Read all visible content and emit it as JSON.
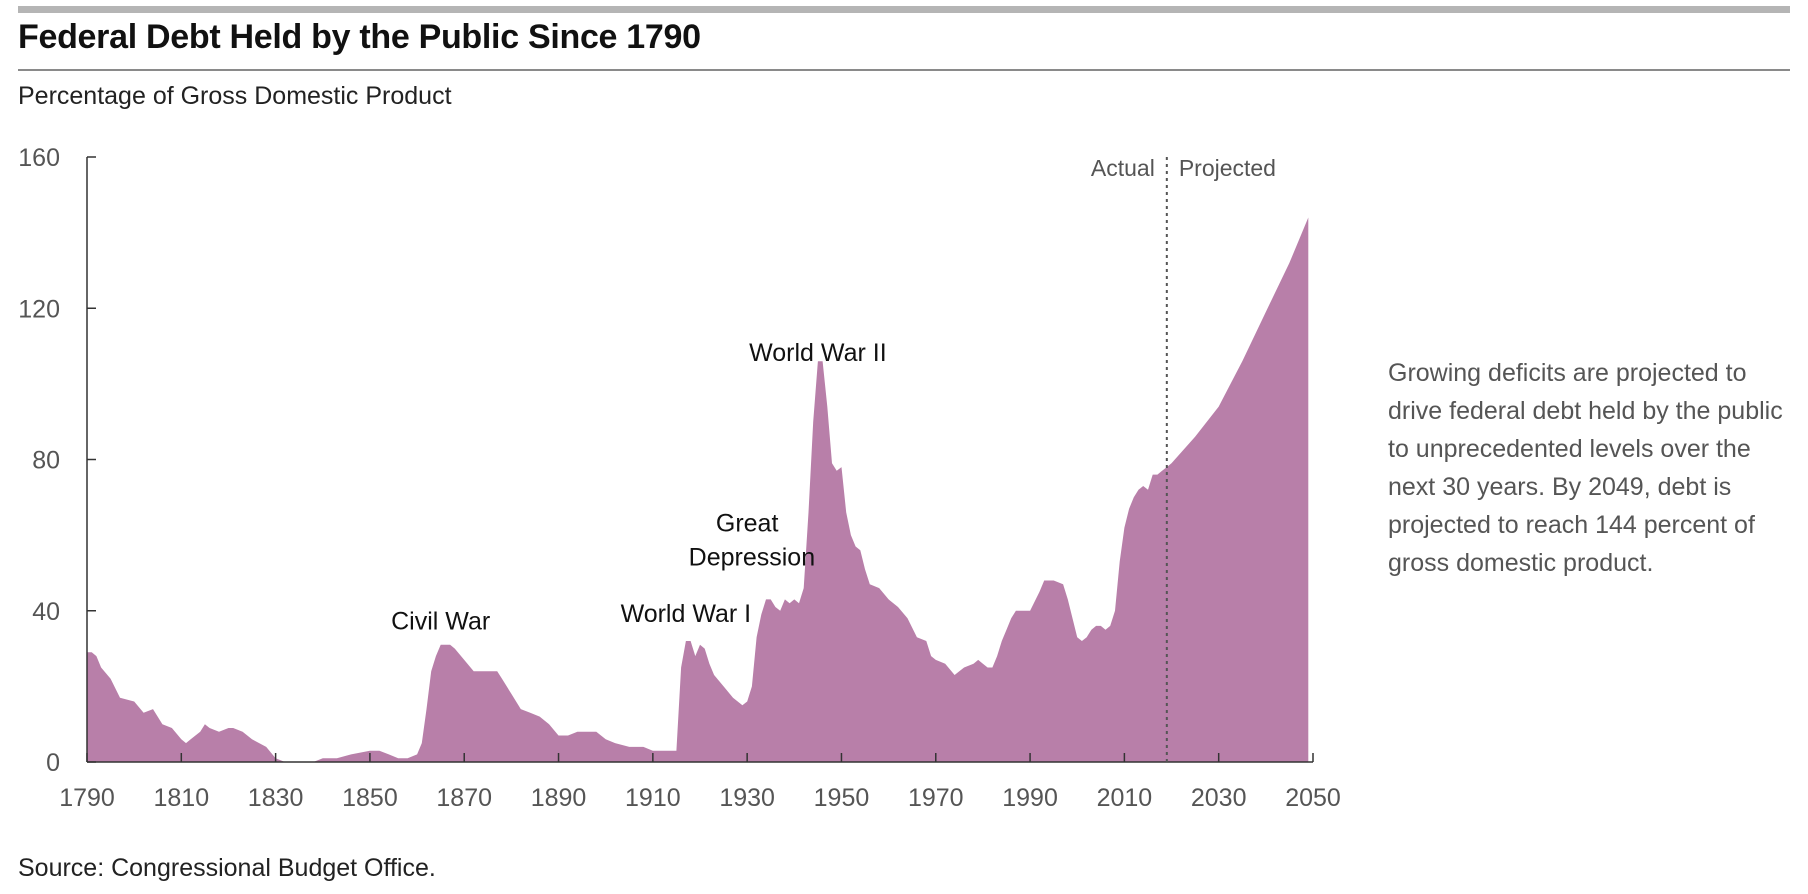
{
  "title": "Federal Debt Held by the Public Since 1790",
  "subtitle": "Percentage of Gross Domestic Product",
  "note": "Growing deficits are projected to drive federal debt held by the public to unprecedented levels over the next 30 years. By 2049, debt is projected to reach 144 percent of gross domestic product.",
  "source": "Source: Congressional Budget Office.",
  "colors": {
    "fill": "#b87fa9",
    "axis": "#333333",
    "divider": "#555555"
  },
  "chart_data": {
    "type": "area",
    "title": "Federal Debt Held by the Public Since 1790",
    "ylabel": "Percentage of Gross Domestic Product",
    "xlabel": "",
    "xlim": [
      1790,
      2050
    ],
    "ylim": [
      0,
      160
    ],
    "xticks": [
      1790,
      1810,
      1830,
      1850,
      1870,
      1890,
      1910,
      1930,
      1950,
      1970,
      1990,
      2010,
      2030,
      2050
    ],
    "yticks": [
      0,
      40,
      80,
      120,
      160
    ],
    "divider": {
      "year": 2019,
      "left_label": "Actual",
      "right_label": "Projected"
    },
    "annotations": [
      {
        "text": "Civil War",
        "x": 1865,
        "y": 35
      },
      {
        "text": "World War I",
        "x": 1917,
        "y": 37
      },
      {
        "text": "Great",
        "x": 1930,
        "y": 61
      },
      {
        "text": "Depression",
        "x": 1931,
        "y": 52
      },
      {
        "text": "World War II",
        "x": 1945,
        "y": 106
      }
    ],
    "series": [
      {
        "name": "Federal debt held by the public",
        "x": [
          1790,
          1791,
          1792,
          1793,
          1795,
          1797,
          1800,
          1802,
          1804,
          1806,
          1808,
          1810,
          1811,
          1812,
          1814,
          1815,
          1816,
          1818,
          1820,
          1821,
          1823,
          1825,
          1828,
          1830,
          1832,
          1833,
          1835,
          1838,
          1840,
          1843,
          1846,
          1850,
          1852,
          1854,
          1856,
          1858,
          1860,
          1861,
          1862,
          1863,
          1864,
          1865,
          1866,
          1867,
          1868,
          1870,
          1872,
          1873,
          1875,
          1877,
          1878,
          1880,
          1882,
          1884,
          1886,
          1888,
          1890,
          1892,
          1894,
          1896,
          1898,
          1900,
          1902,
          1905,
          1908,
          1910,
          1912,
          1914,
          1915,
          1916,
          1917,
          1918,
          1919,
          1920,
          1921,
          1922,
          1923,
          1925,
          1927,
          1929,
          1930,
          1931,
          1932,
          1933,
          1934,
          1935,
          1936,
          1937,
          1938,
          1939,
          1940,
          1941,
          1942,
          1943,
          1944,
          1945,
          1946,
          1947,
          1948,
          1949,
          1950,
          1951,
          1952,
          1953,
          1954,
          1955,
          1956,
          1958,
          1960,
          1962,
          1964,
          1966,
          1968,
          1969,
          1970,
          1972,
          1974,
          1975,
          1976,
          1978,
          1979,
          1980,
          1981,
          1982,
          1983,
          1984,
          1985,
          1986,
          1987,
          1988,
          1990,
          1992,
          1993,
          1995,
          1997,
          1998,
          1999,
          2000,
          2001,
          2002,
          2003,
          2004,
          2005,
          2006,
          2007,
          2008,
          2009,
          2010,
          2011,
          2012,
          2013,
          2014,
          2015,
          2016,
          2017,
          2018,
          2019,
          2020,
          2025,
          2030,
          2035,
          2040,
          2045,
          2049
        ],
        "values": [
          29,
          29,
          28,
          25,
          22,
          17,
          16,
          13,
          14,
          10,
          9,
          6,
          5,
          6,
          8,
          10,
          9,
          8,
          9,
          9,
          8,
          6,
          4,
          1,
          0,
          0,
          0,
          0,
          1,
          1,
          2,
          3,
          3,
          2,
          1,
          1,
          2,
          5,
          14,
          24,
          28,
          31,
          31,
          31,
          30,
          27,
          24,
          24,
          24,
          24,
          22,
          18,
          14,
          13,
          12,
          10,
          7,
          7,
          8,
          8,
          8,
          6,
          5,
          4,
          4,
          3,
          3,
          3,
          3,
          25,
          32,
          32,
          28,
          31,
          30,
          26,
          23,
          20,
          17,
          15,
          16,
          20,
          33,
          39,
          43,
          43,
          41,
          40,
          43,
          42,
          43,
          42,
          46,
          66,
          90,
          106,
          106,
          94,
          79,
          77,
          78,
          66,
          60,
          57,
          56,
          51,
          47,
          46,
          43,
          41,
          38,
          33,
          32,
          28,
          27,
          26,
          23,
          24,
          25,
          26,
          27,
          26,
          25,
          25,
          28,
          32,
          35,
          38,
          40,
          40,
          40,
          45,
          48,
          48,
          47,
          43,
          38,
          33,
          32,
          33,
          35,
          36,
          36,
          35,
          36,
          40,
          53,
          62,
          67,
          70,
          72,
          73,
          72,
          76,
          76,
          77,
          78,
          79,
          86,
          94,
          106,
          119,
          132,
          144
        ]
      }
    ]
  }
}
